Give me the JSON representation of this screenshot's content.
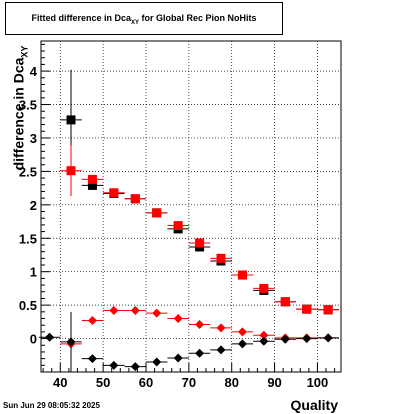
{
  "chart_data": {
    "type": "scatter",
    "title_main": "Fitted difference in Dca",
    "title_sub": "XY",
    "title_rest": " for Global Rec Pion NoHits",
    "xlabel": "Quality",
    "ylabel_main": "difference in Dca",
    "ylabel_sub": "XY",
    "xlim": [
      35.5,
      105.5
    ],
    "ylim": [
      -0.5,
      4.45
    ],
    "xticks": [
      40,
      50,
      60,
      70,
      80,
      90,
      100
    ],
    "yticks": [
      0,
      0.5,
      1,
      1.5,
      2,
      2.5,
      3,
      3.5,
      4
    ],
    "ytick_labels": [
      "0",
      "0.5",
      "1",
      "1.5",
      "2",
      "2.5",
      "3",
      "3.5",
      "4"
    ],
    "grid": true,
    "bin_half_width": 2.5,
    "series": [
      {
        "marker": "square",
        "color": "#000000",
        "x": [
          42.5,
          47.5,
          52.5,
          57.5,
          62.5,
          67.5,
          72.5,
          77.5,
          82.5,
          87.5,
          92.5,
          97.5,
          102.5
        ],
        "y": [
          3.27,
          2.29,
          2.17,
          2.09,
          1.88,
          1.64,
          1.37,
          1.16,
          0.95,
          0.72,
          0.55,
          0.44,
          0.43
        ],
        "err": [
          0.75,
          0.05,
          0.03,
          0.02,
          0.03,
          0.03,
          0.03,
          0.03,
          0.03,
          0.03,
          0.03,
          0.03,
          0.03
        ]
      },
      {
        "marker": "square",
        "color": "#ff0000",
        "x": [
          42.5,
          47.5,
          52.5,
          57.5,
          62.5,
          67.5,
          72.5,
          77.5,
          82.5,
          87.5,
          92.5,
          97.5,
          102.5
        ],
        "y": [
          2.51,
          2.38,
          2.18,
          2.09,
          1.88,
          1.69,
          1.43,
          1.2,
          0.95,
          0.75,
          0.55,
          0.44,
          0.43
        ],
        "err": [
          0.38,
          0.05,
          0.03,
          0.02,
          0.03,
          0.03,
          0.03,
          0.03,
          0.03,
          0.03,
          0.03,
          0.03,
          0.03
        ]
      },
      {
        "marker": "diamond",
        "color": "#ff0000",
        "x": [
          42.5,
          47.5,
          52.5,
          57.5,
          62.5,
          67.5,
          72.5,
          77.5,
          82.5,
          87.5,
          92.5,
          97.5,
          102.5
        ],
        "y": [
          -0.08,
          0.27,
          0.42,
          0.42,
          0.38,
          0.3,
          0.21,
          0.16,
          0.1,
          0.05,
          0.01,
          0.01,
          0.01
        ],
        "err": [
          0.3,
          0.03,
          0.02,
          0.02,
          0.02,
          0.02,
          0.02,
          0.02,
          0.02,
          0.02,
          0.02,
          0.02,
          0.02
        ]
      },
      {
        "marker": "diamond",
        "color": "#000000",
        "x": [
          37.5,
          42.5,
          47.5,
          52.5,
          57.5,
          62.5,
          67.5,
          72.5,
          77.5,
          82.5,
          87.5,
          92.5,
          97.5,
          102.5
        ],
        "y": [
          0.02,
          -0.05,
          -0.3,
          -0.4,
          -0.42,
          -0.35,
          -0.29,
          -0.22,
          -0.17,
          -0.08,
          -0.04,
          -0.01,
          0.0,
          0.01
        ],
        "err": [
          0.02,
          0.45,
          0.03,
          0.02,
          0.02,
          0.02,
          0.02,
          0.02,
          0.02,
          0.02,
          0.02,
          0.02,
          0.02,
          0.02
        ]
      }
    ]
  },
  "timestamp": "Sun Jun 29 08:05:32 2025"
}
